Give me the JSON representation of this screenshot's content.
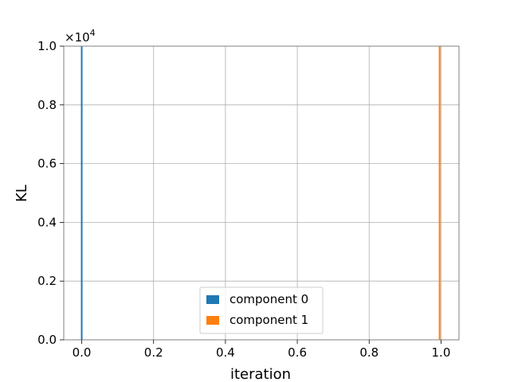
{
  "chart_data": {
    "type": "histogram",
    "xlabel": "iteration",
    "ylabel": "KL",
    "offset_text": "×10",
    "offset_exponent": "4",
    "xlim": [
      -0.05,
      1.05
    ],
    "ylim": [
      0,
      1.0
    ],
    "xticks": [
      0.0,
      0.2,
      0.4,
      0.6,
      0.8,
      1.0
    ],
    "xtick_labels": [
      "0.0",
      "0.2",
      "0.4",
      "0.6",
      "0.8",
      "1.0"
    ],
    "yticks": [
      0.0,
      0.2,
      0.4,
      0.6,
      0.8,
      1.0
    ],
    "ytick_labels": [
      "0.0",
      "0.2",
      "0.4",
      "0.6",
      "0.8",
      "1.0"
    ],
    "grid": true,
    "legend_position": "lower center",
    "series": [
      {
        "name": "component 0",
        "color": "#1f77b4",
        "x": 0.0,
        "value": 1.0
      },
      {
        "name": "component 1",
        "color": "#ff7f0e",
        "x": 0.996,
        "value": 1.0
      }
    ]
  }
}
